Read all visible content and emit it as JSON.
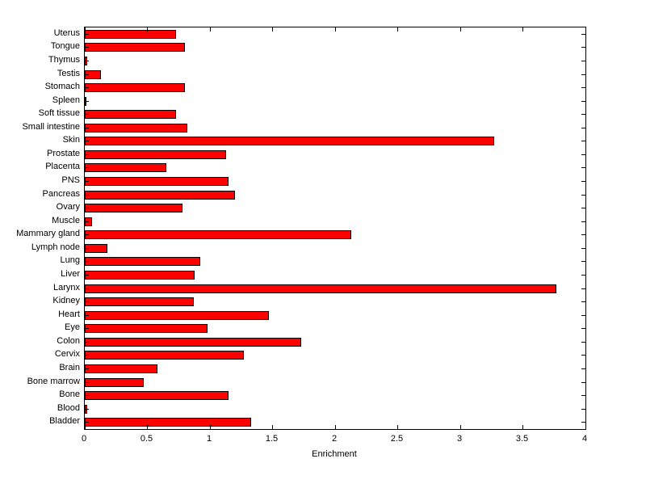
{
  "chart_data": {
    "type": "bar",
    "orientation": "horizontal",
    "title": "",
    "xlabel": "Enrichment",
    "ylabel": "",
    "xlim": [
      0,
      4
    ],
    "xticks": [
      0,
      0.5,
      1,
      1.5,
      2,
      2.5,
      3,
      3.5,
      4
    ],
    "xtick_labels": [
      "0",
      "0.5",
      "1",
      "1.5",
      "2",
      "2.5",
      "3",
      "3.5",
      "4"
    ],
    "grid": false,
    "legend": "none",
    "bar_color": "#ff0000",
    "bar_edge_color": "#000000",
    "categories_top_to_bottom": [
      "Uterus",
      "Tongue",
      "Thymus",
      "Testis",
      "Stomach",
      "Spleen",
      "Soft tissue",
      "Small intestine",
      "Skin",
      "Prostate",
      "Placenta",
      "PNS",
      "Pancreas",
      "Ovary",
      "Muscle",
      "Mammary gland",
      "Lymph node",
      "Lung",
      "Liver",
      "Larynx",
      "Kidney",
      "Heart",
      "Eye",
      "Colon",
      "Cervix",
      "Brain",
      "Bone marrow",
      "Bone",
      "Blood",
      "Bladder"
    ],
    "values": [
      0.73,
      0.8,
      0.02,
      0.13,
      0.8,
      0.01,
      0.73,
      0.82,
      3.27,
      1.13,
      0.65,
      1.15,
      1.2,
      0.78,
      0.06,
      2.13,
      0.18,
      0.92,
      0.88,
      3.77,
      0.87,
      1.47,
      0.98,
      1.73,
      1.27,
      0.58,
      0.47,
      1.15,
      0.02,
      1.33
    ]
  }
}
